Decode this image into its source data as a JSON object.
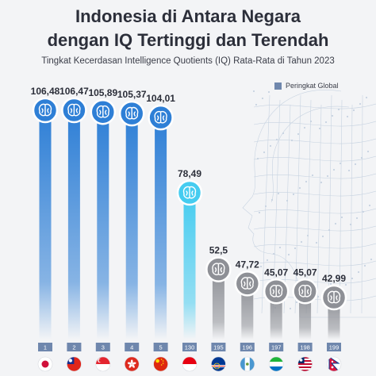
{
  "title_line1": "Indonesia di Antara Negara",
  "title_line2": "dengan IQ Tertinggi dan Terendah",
  "subtitle": "Tingkat Kecerdasan  Intelligence Quotients (IQ) Rata-Rata di Tahun 2023",
  "legend": "Peringkat Global",
  "colors": {
    "top": "#2e7fd6",
    "indonesia": "#45ccf0",
    "bottom": "#8e9096",
    "title": "#2c2f3a",
    "rank_box": "#6f87ad"
  },
  "icons": [
    "brain-icon"
  ],
  "chart_data": {
    "type": "bar",
    "title": "Indonesia di Antara Negara dengan IQ Tertinggi dan Terendah",
    "subtitle": "Tingkat Kecerdasan  Intelligence Quotients (IQ) Rata-Rata di Tahun 2023",
    "categories": [
      "1",
      "2",
      "3",
      "4",
      "5",
      "130",
      "195",
      "196",
      "197",
      "198",
      "199"
    ],
    "values": [
      106.48,
      106.47,
      105.89,
      105.37,
      104.01,
      78.49,
      52.5,
      47.72,
      45.07,
      45.07,
      42.99
    ],
    "value_labels": [
      "106,48",
      "106,47",
      "105,89",
      "105,37",
      "104,01",
      "78,49",
      "52,5",
      "47,72",
      "45,07",
      "45,07",
      "42,99"
    ],
    "flags": [
      "japan",
      "taiwan",
      "singapore",
      "hong-kong",
      "china",
      "indonesia",
      "cape-verde",
      "guatemala",
      "sierra-leone",
      "liberia",
      "nepal"
    ],
    "groups": [
      "top",
      "top",
      "top",
      "top",
      "top",
      "indonesia",
      "bottom",
      "bottom",
      "bottom",
      "bottom",
      "bottom"
    ],
    "legend": "Peringkat Global",
    "xlabel": "",
    "ylabel": "",
    "grid": false,
    "legend_position": "top-right"
  }
}
